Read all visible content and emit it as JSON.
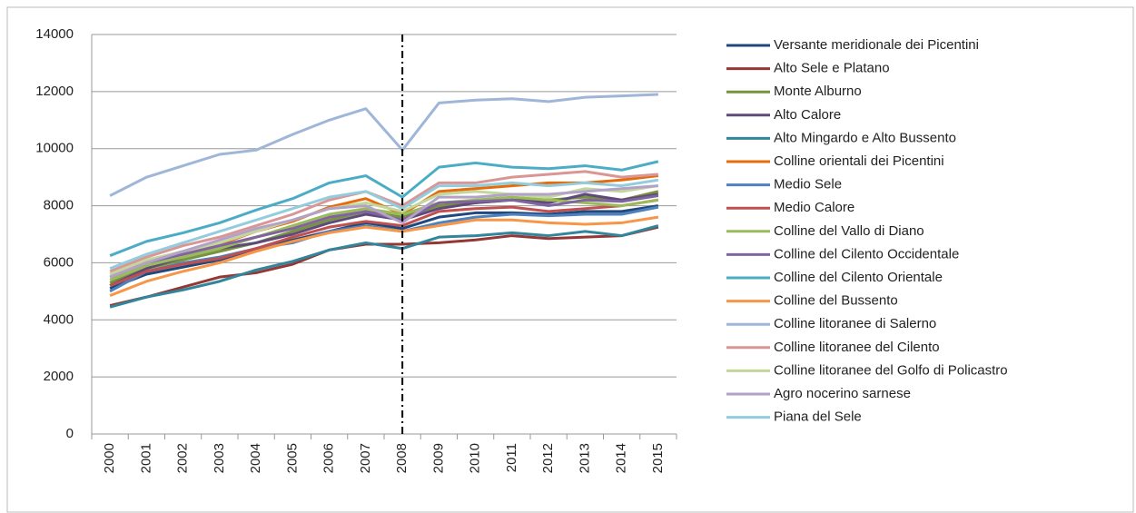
{
  "chart_data": {
    "type": "line",
    "categories": [
      "2000",
      "2001",
      "2002",
      "2003",
      "2004",
      "2005",
      "2006",
      "2007",
      "2008",
      "2009",
      "2010",
      "2011",
      "2012",
      "2013",
      "2014",
      "2015"
    ],
    "ylim": [
      0,
      14000
    ],
    "yticks": [
      0,
      2000,
      4000,
      6000,
      8000,
      10000,
      12000,
      14000
    ],
    "grid": true,
    "vertical_line": "2008",
    "legend": "right",
    "series": [
      {
        "name": "Versante meridionale dei Picentini",
        "color": "#1f497d",
        "values": [
          5100,
          5600,
          5850,
          6100,
          6500,
          6800,
          7100,
          7400,
          7200,
          7600,
          7750,
          7750,
          7700,
          7800,
          7800,
          8000
        ]
      },
      {
        "name": "Alto Sele e Platano",
        "color": "#953735",
        "values": [
          4500,
          4800,
          5150,
          5500,
          5650,
          5950,
          6450,
          6650,
          6650,
          6700,
          6800,
          6950,
          6850,
          6900,
          6950,
          7250
        ]
      },
      {
        "name": "Monte Alburno",
        "color": "#77933c",
        "values": [
          5300,
          5800,
          6100,
          6400,
          6700,
          7100,
          7500,
          7800,
          7600,
          8000,
          8100,
          8200,
          8200,
          8300,
          8200,
          8500
        ]
      },
      {
        "name": "Alto Calore",
        "color": "#604a7b",
        "values": [
          5200,
          5800,
          6200,
          6500,
          6700,
          7000,
          7400,
          7700,
          7500,
          7900,
          8100,
          8200,
          8100,
          8400,
          8200,
          8400
        ]
      },
      {
        "name": "Alto Mingardo e Alto Bussento",
        "color": "#31859c",
        "values": [
          4450,
          4800,
          5050,
          5350,
          5750,
          6050,
          6450,
          6700,
          6500,
          6900,
          6950,
          7050,
          6950,
          7100,
          6950,
          7300
        ]
      },
      {
        "name": "Colline orientali dei Picentini",
        "color": "#e46c0a",
        "values": [
          5600,
          6050,
          6400,
          6650,
          7100,
          7450,
          7950,
          8250,
          7700,
          8500,
          8600,
          8700,
          8800,
          8800,
          8900,
          9050
        ]
      },
      {
        "name": "Medio Sele",
        "color": "#4f81bd",
        "values": [
          5000,
          5700,
          6000,
          6200,
          6500,
          6700,
          7100,
          7300,
          7100,
          7400,
          7600,
          7700,
          7650,
          7700,
          7700,
          7950
        ]
      },
      {
        "name": "Medio Calore",
        "color": "#c0504d",
        "values": [
          5200,
          5700,
          5950,
          6150,
          6500,
          6900,
          7250,
          7450,
          7300,
          7800,
          7900,
          7950,
          7800,
          7900,
          8000,
          8200
        ]
      },
      {
        "name": "Colline del Vallo di Diano",
        "color": "#9bbb59",
        "values": [
          5400,
          5900,
          6200,
          6500,
          6900,
          7300,
          7700,
          7900,
          7700,
          8100,
          8200,
          8300,
          8200,
          8100,
          8000,
          8200
        ]
      },
      {
        "name": "Colline del Cilento Occidentale",
        "color": "#8064a2",
        "values": [
          5500,
          6000,
          6300,
          6600,
          6900,
          7200,
          7600,
          7800,
          7500,
          8100,
          8150,
          8200,
          8000,
          8200,
          8150,
          8350
        ]
      },
      {
        "name": "Colline del Cilento Orientale",
        "color": "#4bacc6",
        "values": [
          6250,
          6750,
          7050,
          7400,
          7850,
          8250,
          8800,
          9050,
          8300,
          9350,
          9500,
          9350,
          9300,
          9400,
          9250,
          9550
        ]
      },
      {
        "name": "Colline del Bussento",
        "color": "#f79646",
        "values": [
          4850,
          5350,
          5700,
          6000,
          6400,
          6750,
          7050,
          7250,
          7100,
          7300,
          7500,
          7500,
          7400,
          7350,
          7400,
          7600
        ]
      },
      {
        "name": "Colline litoranee di Salerno",
        "color": "#9fb6d8",
        "values": [
          8350,
          9000,
          9400,
          9800,
          9950,
          10500,
          11000,
          11400,
          9950,
          11600,
          11700,
          11750,
          11650,
          11800,
          11850,
          11900
        ]
      },
      {
        "name": "Colline litoranee del Cilento",
        "color": "#d99694",
        "values": [
          5700,
          6200,
          6600,
          6900,
          7300,
          7700,
          8200,
          8500,
          8000,
          8800,
          8800,
          9000,
          9100,
          9200,
          9000,
          9100
        ]
      },
      {
        "name": "Colline litoranee del Golfo di Policastro",
        "color": "#c3d69b",
        "values": [
          5600,
          6100,
          6400,
          6700,
          7100,
          7500,
          7900,
          8100,
          7800,
          8400,
          8500,
          8400,
          8300,
          8600,
          8500,
          8700
        ]
      },
      {
        "name": "Agro nocerino sarnese",
        "color": "#b3a2c7",
        "values": [
          5500,
          6000,
          6400,
          6800,
          7200,
          7500,
          7900,
          8000,
          7400,
          8300,
          8300,
          8400,
          8400,
          8500,
          8600,
          8700
        ]
      },
      {
        "name": "Piana del Sele",
        "color": "#93cddd",
        "values": [
          5800,
          6300,
          6700,
          7100,
          7500,
          7900,
          8300,
          8500,
          7900,
          8700,
          8700,
          8800,
          8700,
          8800,
          8700,
          8900
        ]
      }
    ]
  }
}
